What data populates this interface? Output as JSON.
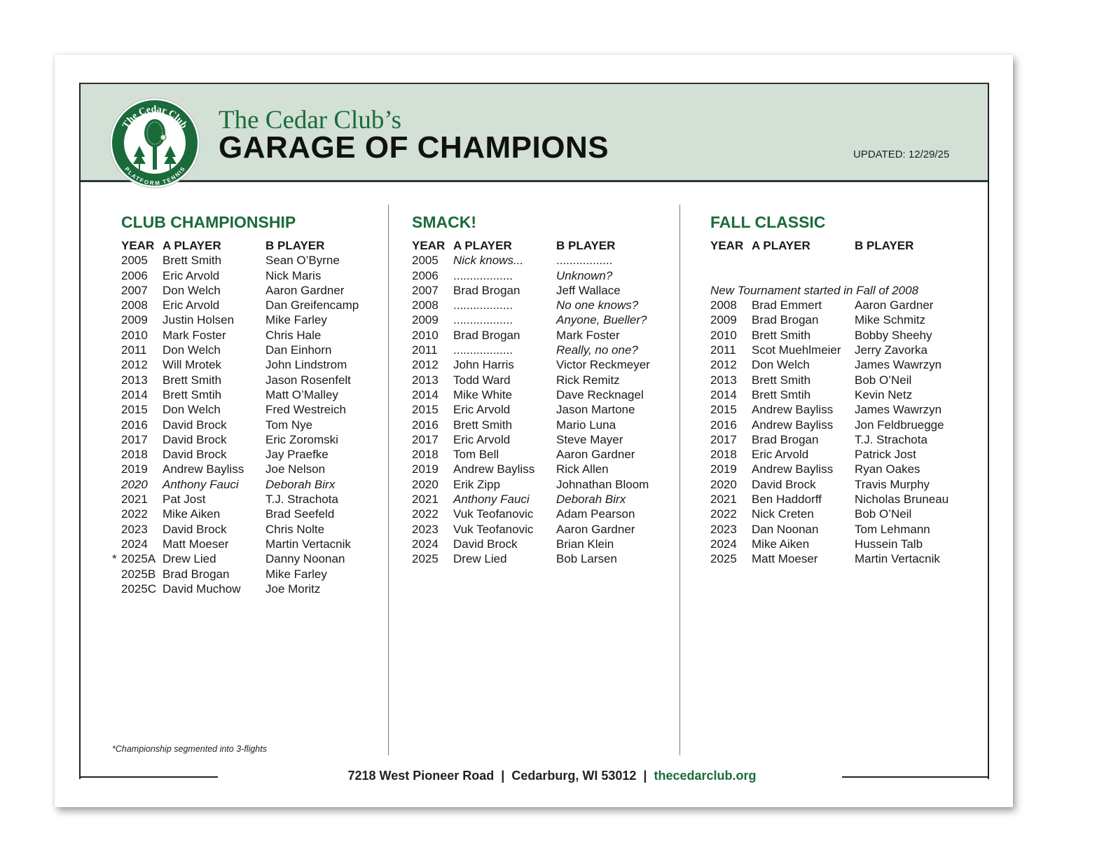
{
  "header": {
    "line1": "The Cedar Club’s",
    "line2": "GARAGE OF CHAMPIONS",
    "updated": "UPDATED: 12/29/25",
    "logo_text": "The Cedar Club PLATFORM TENNIS",
    "green": "#1b6b3a",
    "band": "#d2e0d6"
  },
  "columns_header": {
    "year": "YEAR",
    "a": "A PLAYER",
    "b": "B PLAYER"
  },
  "sections": [
    {
      "title": "CLUB CHAMPIONSHIP",
      "rows": [
        {
          "y": "2005",
          "a": "Brett Smith",
          "b": "Sean O’Byrne"
        },
        {
          "y": "2006",
          "a": "Eric Arvold",
          "b": "Nick Maris"
        },
        {
          "y": "2007",
          "a": "Don Welch",
          "b": "Aaron Gardner"
        },
        {
          "y": "2008",
          "a": "Eric Arvold",
          "b": "Dan Greifencamp"
        },
        {
          "y": "2009",
          "a": "Justin Holsen",
          "b": "Mike Farley"
        },
        {
          "y": "2010",
          "a": "Mark Foster",
          "b": "Chris Hale"
        },
        {
          "y": "2011",
          "a": "Don Welch",
          "b": "Dan Einhorn"
        },
        {
          "y": "2012",
          "a": "Will Mrotek",
          "b": "John Lindstrom"
        },
        {
          "y": "2013",
          "a": "Brett Smith",
          "b": "Jason Rosenfelt"
        },
        {
          "y": "2014",
          "a": "Brett Smtih",
          "b": "Matt O’Malley"
        },
        {
          "y": "2015",
          "a": "Don Welch",
          "b": "Fred Westreich"
        },
        {
          "y": "2016",
          "a": "David Brock",
          "b": "Tom Nye"
        },
        {
          "y": "2017",
          "a": "David Brock",
          "b": "Eric Zoromski"
        },
        {
          "y": "2018",
          "a": "David Brock",
          "b": "Jay Praefke"
        },
        {
          "y": "2019",
          "a": "Andrew Bayliss",
          "b": "Joe Nelson"
        },
        {
          "y": "2020",
          "a": "Anthony Fauci",
          "b": "Deborah Birx",
          "italic": [
            "y",
            "a",
            "b"
          ]
        },
        {
          "y": "2021",
          "a": "Pat Jost",
          "b": "T.J. Strachota"
        },
        {
          "y": "2022",
          "a": "Mike Aiken",
          "b": "Brad Seefeld"
        },
        {
          "y": "2023",
          "a": "David Brock",
          "b": "Chris Nolte"
        },
        {
          "y": "2024",
          "a": "Matt Moeser",
          "b": "Martin Vertacnik"
        },
        {
          "y": "2025A",
          "a": "Drew Lied",
          "b": "Danny Noonan",
          "star": "*"
        },
        {
          "y": "2025B",
          "a": "Brad Brogan",
          "b": "Mike Farley"
        },
        {
          "y": "2025C",
          "a": "David Muchow",
          "b": "Joe Moritz"
        }
      ]
    },
    {
      "title": "SMACK!",
      "rows": [
        {
          "y": "2005",
          "a": "Nick knows...",
          "b": ".................",
          "italic": [
            "a"
          ]
        },
        {
          "y": "2006",
          "a": "..................",
          "b": "Unknown?",
          "italic": [
            "b"
          ]
        },
        {
          "y": "2007",
          "a": "Brad Brogan",
          "b": "Jeff Wallace"
        },
        {
          "y": "2008",
          "a": "..................",
          "b": "No one knows?",
          "italic": [
            "b"
          ]
        },
        {
          "y": "2009",
          "a": "..................",
          "b": "Anyone, Bueller?",
          "italic": [
            "b"
          ]
        },
        {
          "y": "2010",
          "a": "Brad Brogan",
          "b": "Mark Foster"
        },
        {
          "y": "2011",
          "a": "..................",
          "b": "Really, no one?",
          "italic": [
            "b"
          ]
        },
        {
          "y": "2012",
          "a": "John Harris",
          "b": "Victor Reckmeyer"
        },
        {
          "y": "2013",
          "a": "Todd Ward",
          "b": "Rick Remitz"
        },
        {
          "y": "2014",
          "a": "Mike White",
          "b": "Dave Recknagel"
        },
        {
          "y": "2015",
          "a": "Eric Arvold",
          "b": "Jason Martone"
        },
        {
          "y": "2016",
          "a": "Brett Smith",
          "b": "Mario Luna"
        },
        {
          "y": "2017",
          "a": "Eric Arvold",
          "b": "Steve Mayer"
        },
        {
          "y": "2018",
          "a": "Tom Bell",
          "b": "Aaron Gardner"
        },
        {
          "y": "2019",
          "a": "Andrew Bayliss",
          "b": "Rick Allen"
        },
        {
          "y": "2020",
          "a": "Erik Zipp",
          "b": "Johnathan Bloom"
        },
        {
          "y": "2021",
          "a": "Anthony Fauci",
          "b": "Deborah Birx",
          "italic": [
            "a",
            "b"
          ]
        },
        {
          "y": "2022",
          "a": "Vuk Teofanovic",
          "b": "Adam Pearson"
        },
        {
          "y": "2023",
          "a": "Vuk Teofanovic",
          "b": "Aaron Gardner"
        },
        {
          "y": "2024",
          "a": "David Brock",
          "b": "Brian Klein"
        },
        {
          "y": "2025",
          "a": "Drew Lied",
          "b": "Bob Larsen"
        }
      ]
    },
    {
      "title": "FALL CLASSIC",
      "note": "New Tournament started in Fall of 2008",
      "rows": [
        {
          "y": "2008",
          "a": "Brad Emmert",
          "b": "Aaron Gardner"
        },
        {
          "y": "2009",
          "a": "Brad Brogan",
          "b": "Mike Schmitz"
        },
        {
          "y": "2010",
          "a": "Brett Smith",
          "b": "Bobby Sheehy"
        },
        {
          "y": "2011",
          "a": "Scot Muehlmeier",
          "b": "Jerry Zavorka"
        },
        {
          "y": "2012",
          "a": "Don Welch",
          "b": "James Wawrzyn"
        },
        {
          "y": "2013",
          "a": "Brett Smith",
          "b": "Bob O’Neil"
        },
        {
          "y": "2014",
          "a": "Brett Smtih",
          "b": "Kevin Netz"
        },
        {
          "y": "2015",
          "a": "Andrew Bayliss",
          "b": "James Wawrzyn"
        },
        {
          "y": "2016",
          "a": "Andrew Bayliss",
          "b": "Jon Feldbruegge"
        },
        {
          "y": "2017",
          "a": "Brad Brogan",
          "b": "T.J. Strachota"
        },
        {
          "y": "2018",
          "a": "Eric Arvold",
          "b": "Patrick Jost"
        },
        {
          "y": "2019",
          "a": "Andrew Bayliss",
          "b": "Ryan Oakes"
        },
        {
          "y": "2020",
          "a": "David Brock",
          "b": "Travis Murphy"
        },
        {
          "y": "2021",
          "a": "Ben Haddorff",
          "b": "Nicholas Bruneau"
        },
        {
          "y": "2022",
          "a": "Nick Creten",
          "b": "Bob O’Neil"
        },
        {
          "y": "2023",
          "a": "Dan Noonan",
          "b": "Tom Lehmann"
        },
        {
          "y": "2024",
          "a": "Mike Aiken",
          "b": "Hussein Talb"
        },
        {
          "y": "2025",
          "a": "Matt Moeser",
          "b": "Martin Vertacnik"
        }
      ]
    }
  ],
  "footnote": {
    "star": "*",
    "text": "Championship segmented into 3-flights"
  },
  "footer": {
    "address": "7218 West Pioneer Road",
    "sep1": "|",
    "city": "Cedarburg, WI 53012",
    "sep2": "|",
    "url": "thecedarclub.org"
  }
}
